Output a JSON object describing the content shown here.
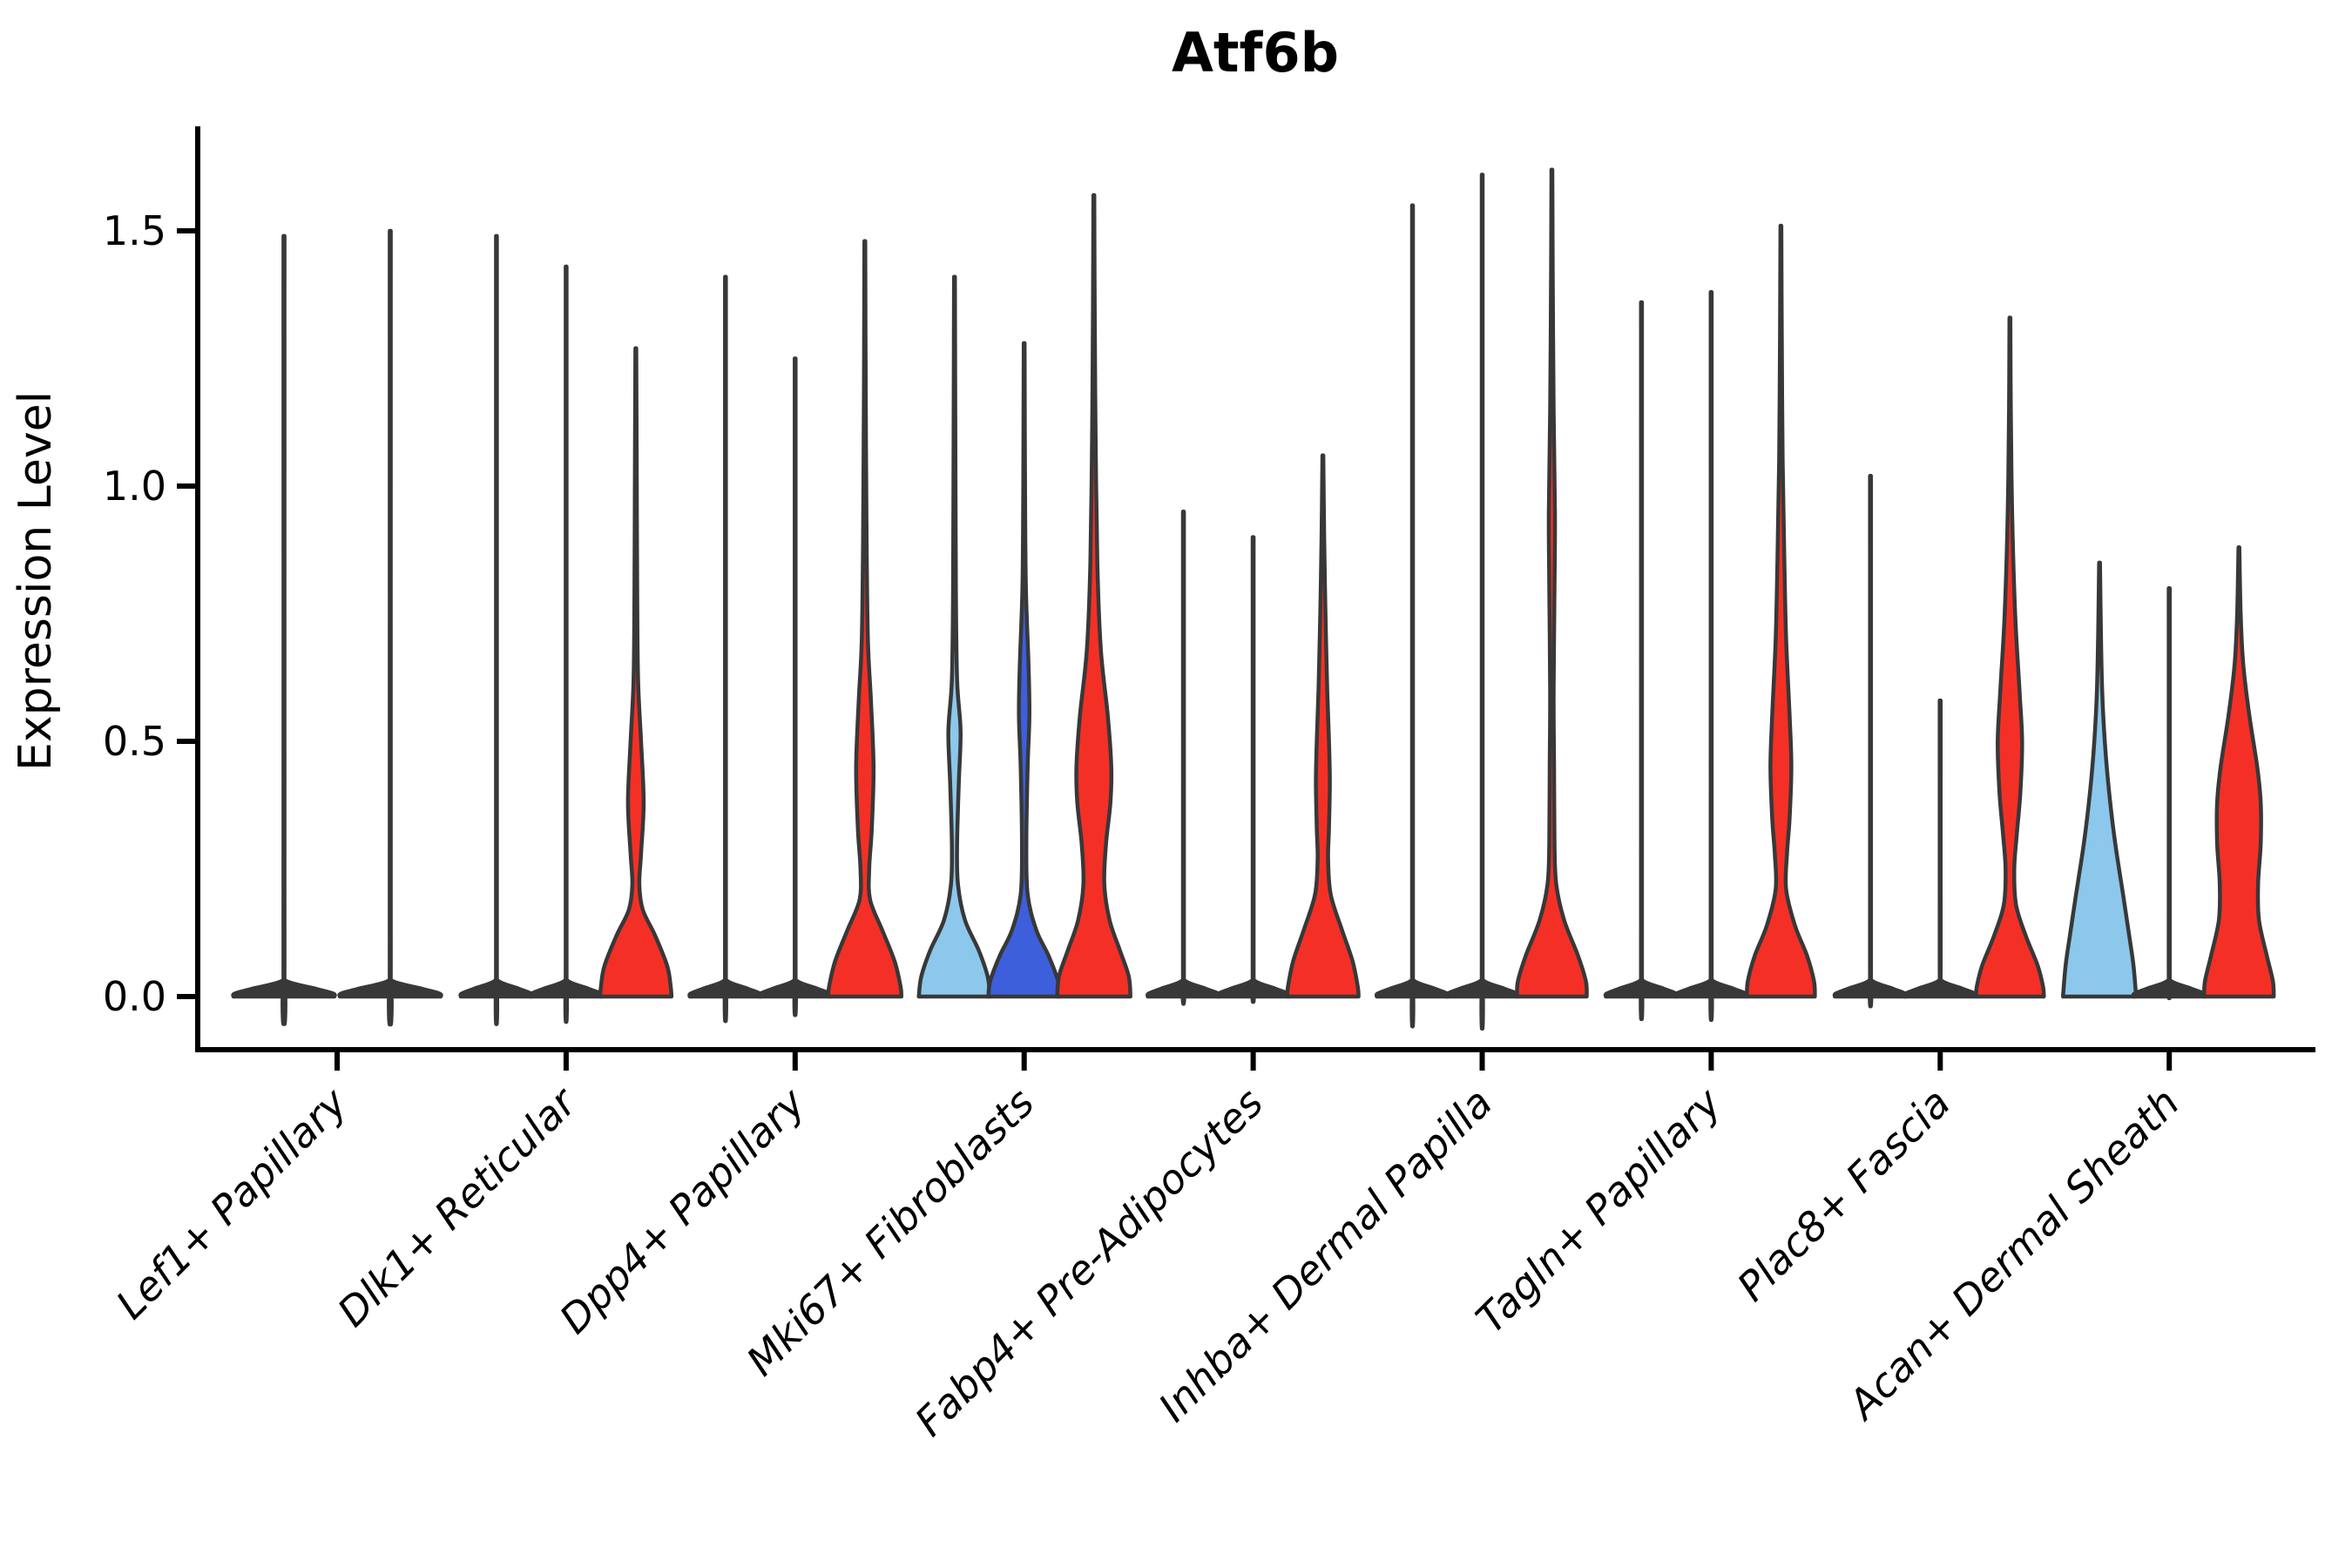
{
  "title": "Atf6b",
  "y_axis": {
    "label": "Expression Level",
    "ticks": [
      {
        "label": "0.0",
        "value": 0.0
      },
      {
        "label": "0.5",
        "value": 0.5
      },
      {
        "label": "1.0",
        "value": 1.0
      },
      {
        "label": "1.5",
        "value": 1.5
      }
    ]
  },
  "colors": {
    "red": "#f43026",
    "light_blue": "#8bc8ec",
    "dark_blue": "#3d5fdc",
    "outline": "#383838",
    "axis": "#000000",
    "background": "#ffffff"
  },
  "chart_data": {
    "type": "violin",
    "title": "Atf6b",
    "ylabel": "Expression Level",
    "ylim": [
      -0.08,
      1.72
    ],
    "grid": false,
    "legend": "none",
    "categories": [
      "Lef1+ Papillary",
      "Dlk1+ Reticular",
      "Dpp4+ Papillary",
      "Mki67+ Fibroblasts",
      "Fabp4+ Pre-Adipocytes",
      "Inhba+ Dermal Papilla",
      "Tagln+ Papillary",
      "Plac8+ Fascia",
      "Acan+ Dermal Sheath"
    ],
    "groups": [
      {
        "label": "Lef1+ Papillary",
        "violins": [
          {
            "color_key": "none",
            "shape": "line",
            "max": 1.49,
            "base_halfwidth": 58
          },
          {
            "color_key": "none",
            "shape": "line",
            "max": 1.5,
            "base_halfwidth": 58
          }
        ]
      },
      {
        "label": "Dlk1+ Reticular",
        "violins": [
          {
            "color_key": "none",
            "shape": "line",
            "max": 1.49,
            "base_halfwidth": 41
          },
          {
            "color_key": "none",
            "shape": "line",
            "max": 1.43,
            "base_halfwidth": 41
          },
          {
            "color_key": "red",
            "shape": "violin",
            "max": 1.27,
            "profile": [
              [
                1.27,
                0.5
              ],
              [
                1.05,
                1
              ],
              [
                0.78,
                1.6
              ],
              [
                0.62,
                2.6
              ],
              [
                0.5,
                6
              ],
              [
                0.38,
                9
              ],
              [
                0.28,
                6
              ],
              [
                0.22,
                4
              ],
              [
                0.17,
                8
              ],
              [
                0.12,
                22
              ],
              [
                0.06,
                36
              ],
              [
                0.02,
                40
              ],
              [
                0,
                41
              ]
            ]
          }
        ]
      },
      {
        "label": "Dpp4+ Papillary",
        "violins": [
          {
            "color_key": "none",
            "shape": "line",
            "max": 1.41,
            "base_halfwidth": 41
          },
          {
            "color_key": "none",
            "shape": "line",
            "max": 1.25,
            "base_halfwidth": 41
          },
          {
            "color_key": "red",
            "shape": "violin",
            "max": 1.48,
            "profile": [
              [
                1.48,
                0.5
              ],
              [
                1.2,
                1
              ],
              [
                0.9,
                2
              ],
              [
                0.7,
                3.5
              ],
              [
                0.58,
                7
              ],
              [
                0.45,
                10
              ],
              [
                0.33,
                8
              ],
              [
                0.25,
                5
              ],
              [
                0.19,
                6
              ],
              [
                0.13,
                20
              ],
              [
                0.07,
                34
              ],
              [
                0.02,
                41
              ],
              [
                0,
                42
              ]
            ]
          }
        ]
      },
      {
        "label": "Mki67+ Fibroblasts",
        "violins": [
          {
            "color_key": "light_blue",
            "shape": "violin",
            "max": 1.41,
            "profile": [
              [
                1.41,
                0.5
              ],
              [
                1.1,
                1
              ],
              [
                0.8,
                1.6
              ],
              [
                0.62,
                3
              ],
              [
                0.52,
                7
              ],
              [
                0.42,
                5
              ],
              [
                0.3,
                3
              ],
              [
                0.22,
                4
              ],
              [
                0.15,
                12
              ],
              [
                0.09,
                28
              ],
              [
                0.04,
                38
              ],
              [
                0,
                41
              ]
            ]
          },
          {
            "color_key": "dark_blue",
            "shape": "violin",
            "max": 1.28,
            "profile": [
              [
                1.28,
                0.5
              ],
              [
                1.0,
                1
              ],
              [
                0.8,
                2
              ],
              [
                0.65,
                5
              ],
              [
                0.55,
                6
              ],
              [
                0.45,
                4
              ],
              [
                0.3,
                2.5
              ],
              [
                0.2,
                4
              ],
              [
                0.13,
                14
              ],
              [
                0.08,
                28
              ],
              [
                0.03,
                39
              ],
              [
                0,
                41
              ]
            ]
          },
          {
            "color_key": "red",
            "shape": "violin",
            "max": 1.57,
            "profile": [
              [
                1.57,
                0.5
              ],
              [
                1.35,
                1
              ],
              [
                1.1,
                2
              ],
              [
                0.85,
                4
              ],
              [
                0.68,
                8
              ],
              [
                0.55,
                16
              ],
              [
                0.45,
                20
              ],
              [
                0.38,
                19
              ],
              [
                0.3,
                14
              ],
              [
                0.22,
                12
              ],
              [
                0.15,
                18
              ],
              [
                0.09,
                30
              ],
              [
                0.04,
                40
              ],
              [
                0,
                42
              ]
            ]
          }
        ]
      },
      {
        "label": "Fabp4+ Pre-Adipocytes",
        "violins": [
          {
            "color_key": "none",
            "shape": "line",
            "max": 0.95,
            "base_halfwidth": 41
          },
          {
            "color_key": "none",
            "shape": "line",
            "max": 0.9,
            "base_halfwidth": 41
          },
          {
            "color_key": "red",
            "shape": "violin",
            "max": 1.06,
            "profile": [
              [
                1.06,
                0.5
              ],
              [
                0.9,
                1.5
              ],
              [
                0.75,
                3
              ],
              [
                0.6,
                5
              ],
              [
                0.5,
                7
              ],
              [
                0.42,
                8
              ],
              [
                0.33,
                7
              ],
              [
                0.27,
                6
              ],
              [
                0.2,
                9
              ],
              [
                0.13,
                22
              ],
              [
                0.07,
                34
              ],
              [
                0.02,
                40
              ],
              [
                0,
                41
              ]
            ]
          }
        ]
      },
      {
        "label": "Inhba+ Dermal Papilla",
        "violins": [
          {
            "color_key": "none",
            "shape": "line",
            "max": 1.55,
            "base_halfwidth": 41
          },
          {
            "color_key": "none",
            "shape": "line",
            "max": 1.61,
            "base_halfwidth": 41
          },
          {
            "color_key": "red",
            "shape": "violin",
            "max": 1.62,
            "profile": [
              [
                1.62,
                0.5
              ],
              [
                1.4,
                1
              ],
              [
                1.15,
                2
              ],
              [
                0.95,
                3.5
              ],
              [
                0.8,
                3
              ],
              [
                0.6,
                2
              ],
              [
                0.45,
                2.5
              ],
              [
                0.3,
                3
              ],
              [
                0.22,
                5
              ],
              [
                0.15,
                14
              ],
              [
                0.08,
                30
              ],
              [
                0.03,
                39
              ],
              [
                0,
                40
              ]
            ]
          }
        ]
      },
      {
        "label": "Tagln+ Papillary",
        "violins": [
          {
            "color_key": "none",
            "shape": "line",
            "max": 1.36,
            "base_halfwidth": 41
          },
          {
            "color_key": "none",
            "shape": "line",
            "max": 1.38,
            "base_halfwidth": 41
          },
          {
            "color_key": "red",
            "shape": "violin",
            "max": 1.51,
            "profile": [
              [
                1.51,
                0.5
              ],
              [
                1.3,
                1
              ],
              [
                1.05,
                2
              ],
              [
                0.85,
                4
              ],
              [
                0.7,
                6
              ],
              [
                0.55,
                10
              ],
              [
                0.45,
                12
              ],
              [
                0.35,
                10
              ],
              [
                0.28,
                7
              ],
              [
                0.21,
                6
              ],
              [
                0.14,
                16
              ],
              [
                0.08,
                30
              ],
              [
                0.03,
                38
              ],
              [
                0,
                39
              ]
            ]
          }
        ]
      },
      {
        "label": "Plac8+ Fascia",
        "violins": [
          {
            "color_key": "none",
            "shape": "line",
            "max": 1.02,
            "base_halfwidth": 41
          },
          {
            "color_key": "none",
            "shape": "line",
            "max": 0.58,
            "base_halfwidth": 41
          },
          {
            "color_key": "red",
            "shape": "violin",
            "max": 1.33,
            "profile": [
              [
                1.33,
                0.5
              ],
              [
                1.15,
                1
              ],
              [
                0.95,
                2.5
              ],
              [
                0.75,
                6
              ],
              [
                0.6,
                11
              ],
              [
                0.5,
                14
              ],
              [
                0.4,
                12
              ],
              [
                0.32,
                8
              ],
              [
                0.25,
                5
              ],
              [
                0.18,
                7
              ],
              [
                0.12,
                18
              ],
              [
                0.06,
                32
              ],
              [
                0.02,
                38
              ],
              [
                0,
                39
              ]
            ]
          }
        ]
      },
      {
        "label": "Acan+ Dermal Sheath",
        "violins": [
          {
            "color_key": "light_blue",
            "shape": "violin",
            "max": 0.85,
            "profile": [
              [
                0.85,
                0.5
              ],
              [
                0.72,
                1.5
              ],
              [
                0.6,
                3
              ],
              [
                0.5,
                6
              ],
              [
                0.4,
                11
              ],
              [
                0.3,
                18
              ],
              [
                0.2,
                27
              ],
              [
                0.12,
                34
              ],
              [
                0.06,
                39
              ],
              [
                0,
                42
              ]
            ]
          },
          {
            "color_key": "none",
            "shape": "line",
            "max": 0.8,
            "base_halfwidth": 41
          },
          {
            "color_key": "red",
            "shape": "violin",
            "max": 0.88,
            "profile": [
              [
                0.88,
                0.5
              ],
              [
                0.75,
                2
              ],
              [
                0.65,
                5
              ],
              [
                0.55,
                12
              ],
              [
                0.45,
                21
              ],
              [
                0.38,
                25
              ],
              [
                0.3,
                25
              ],
              [
                0.22,
                22
              ],
              [
                0.15,
                23
              ],
              [
                0.08,
                32
              ],
              [
                0.03,
                39
              ],
              [
                0,
                40
              ]
            ]
          }
        ]
      }
    ]
  }
}
